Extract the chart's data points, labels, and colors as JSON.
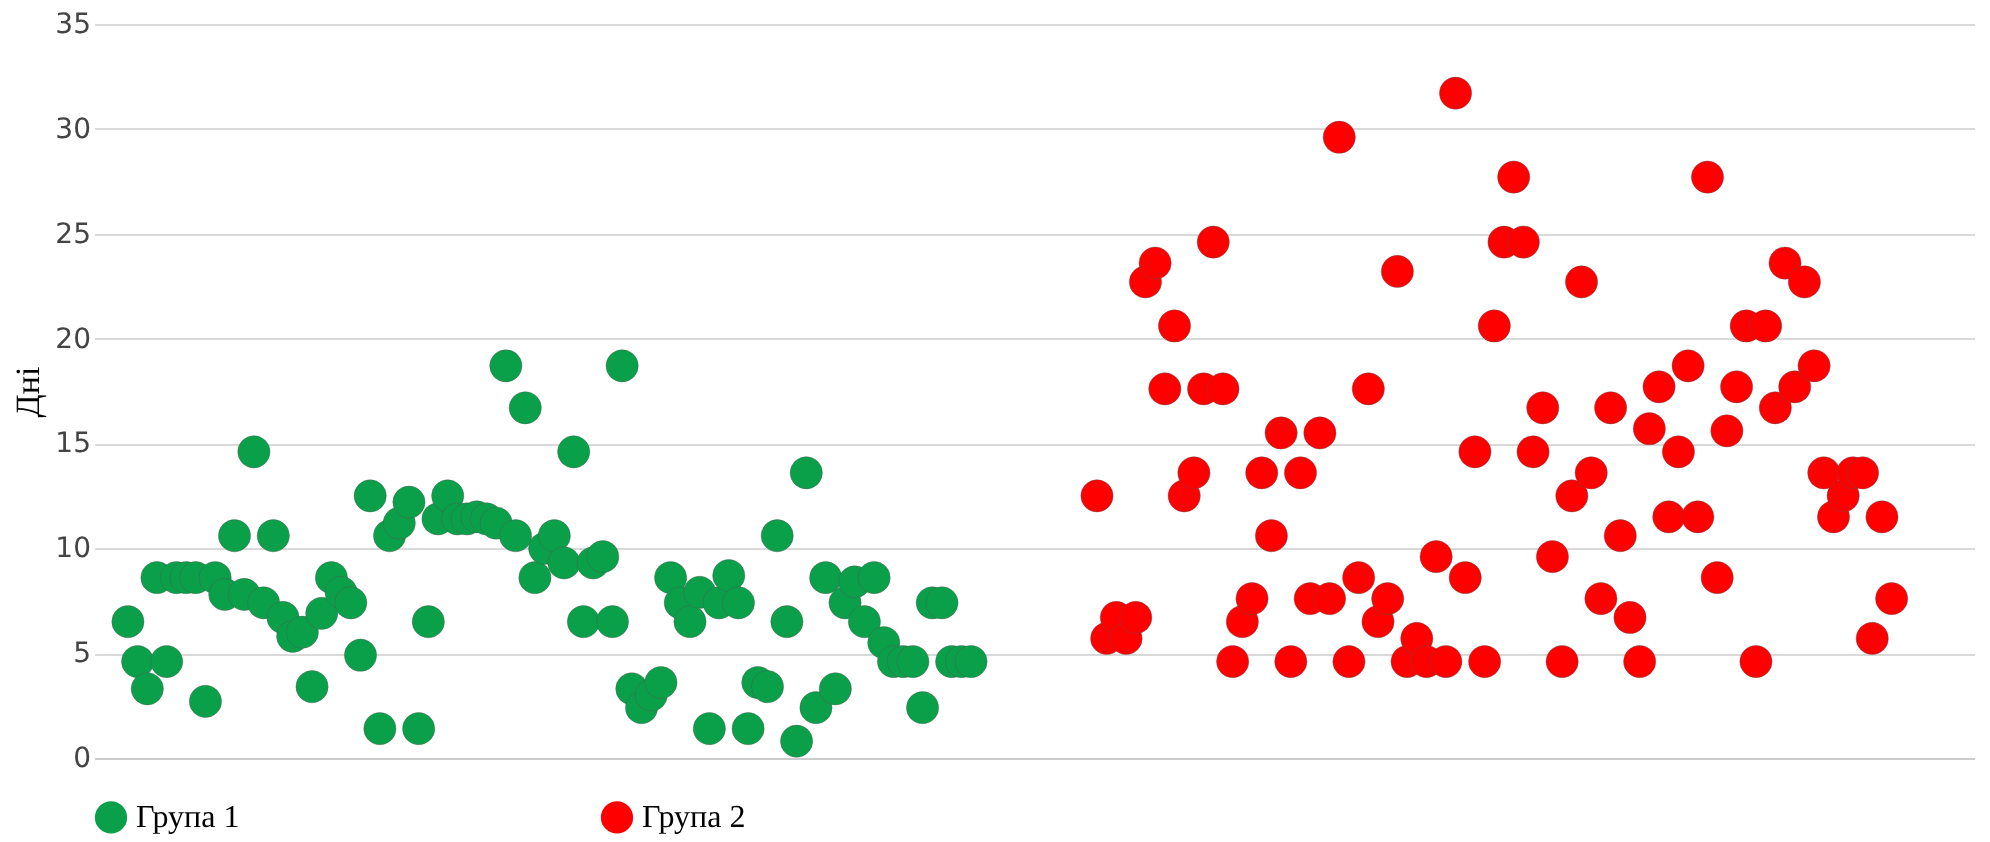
{
  "chart_data": {
    "type": "scatter",
    "ylabel": "Дні",
    "categories": [
      null,
      null,
      null,
      null,
      null,
      null,
      null,
      null,
      null,
      null,
      null,
      null,
      null,
      null,
      null,
      null,
      null,
      null,
      null,
      null,
      null,
      null,
      null,
      null,
      null,
      null,
      null,
      null,
      null,
      null,
      null,
      null,
      null,
      null,
      null,
      null,
      null,
      null,
      null,
      null,
      null,
      null,
      null,
      null,
      null,
      null,
      null,
      null,
      null,
      null,
      null,
      null,
      null,
      null,
      null,
      null,
      null,
      null,
      null,
      null,
      null,
      null,
      null,
      null,
      null,
      null,
      null,
      null,
      null,
      null,
      null,
      null,
      null,
      null,
      null,
      null,
      null,
      null,
      null,
      null,
      null,
      null,
      null,
      null,
      null,
      null,
      null,
      null,
      null,
      null,
      null,
      null,
      null,
      null,
      null,
      null,
      null,
      null,
      null,
      null,
      null,
      null,
      null,
      null,
      null,
      null,
      null,
      null,
      null,
      null,
      null,
      null,
      null,
      null,
      null,
      null,
      null,
      null,
      null,
      null,
      null,
      null,
      null,
      null,
      null,
      null,
      null,
      null,
      null,
      null,
      null,
      null,
      null,
      null,
      null,
      null,
      null,
      null,
      null,
      null,
      null,
      null,
      null,
      null,
      null,
      null,
      null,
      null,
      null,
      null,
      null,
      null,
      null,
      null,
      null,
      null,
      null,
      null,
      null,
      null,
      null,
      null,
      null,
      null,
      null,
      null,
      null,
      null,
      null,
      null,
      null,
      null,
      null,
      null,
      null,
      null,
      null,
      null,
      null,
      null,
      null,
      null,
      null,
      null,
      null,
      null,
      null,
      null,
      null,
      null,
      null,
      null,
      null,
      null
    ],
    "ylim": [
      0,
      35
    ],
    "yticks": [
      0,
      5,
      10,
      15,
      20,
      25,
      30,
      35
    ],
    "grid": "y",
    "legend": "bottom",
    "marker": "circle",
    "series": [
      {
        "name": "Група 1",
        "color": "#0aa04a",
        "values": [
          null,
          null,
          null,
          6.5,
          4.6,
          3.3,
          8.6,
          4.6,
          8.6,
          8.6,
          8.6,
          2.7,
          8.6,
          7.8,
          10.6,
          7.8,
          14.6,
          7.4,
          10.6,
          6.7,
          5.8,
          6.0,
          3.4,
          6.9,
          8.6,
          7.9,
          7.4,
          4.9,
          12.5,
          1.4,
          10.6,
          11.2,
          12.2,
          1.4,
          6.5,
          11.4,
          12.5,
          11.4,
          11.4,
          11.5,
          11.4,
          11.2,
          18.7,
          10.6,
          16.7,
          8.6,
          10.0,
          10.6,
          9.3,
          14.6,
          6.5,
          9.3,
          9.6,
          6.5,
          18.7,
          3.3,
          2.4,
          3.0,
          3.6,
          8.6,
          7.4,
          6.5,
          7.9,
          1.4,
          7.4,
          8.7,
          7.4,
          1.4,
          3.6,
          3.4,
          10.6,
          6.5,
          0.8,
          13.6,
          2.4,
          8.6,
          3.3,
          7.4,
          8.4,
          6.5,
          8.6,
          5.5,
          4.6,
          4.6,
          4.6,
          2.4,
          7.4,
          7.4,
          4.6,
          4.6,
          4.6,
          null,
          null,
          null,
          null,
          null,
          null,
          null,
          null,
          null,
          null,
          null,
          null,
          null,
          null,
          null,
          null,
          null,
          null,
          null,
          null,
          null,
          null,
          null,
          null,
          null,
          null,
          null,
          null,
          null,
          null,
          null,
          null,
          null,
          null,
          null,
          null,
          null,
          null,
          null,
          null,
          null,
          null,
          null,
          null,
          null,
          null,
          null,
          null,
          null,
          null,
          null,
          null,
          null,
          null,
          null,
          null,
          null,
          null,
          null,
          null,
          null,
          null,
          null,
          null,
          null,
          null,
          null,
          null,
          null,
          null,
          null,
          null,
          null,
          null,
          null,
          null,
          null,
          null,
          null,
          null,
          null,
          null,
          null,
          null,
          null,
          null,
          null,
          null,
          null,
          null,
          null,
          null,
          null,
          null,
          null,
          null,
          null,
          null,
          null,
          null,
          null,
          null,
          null
        ]
      },
      {
        "name": "Група 2",
        "color": "#ff0000",
        "values": [
          null,
          null,
          null,
          null,
          null,
          null,
          null,
          null,
          null,
          null,
          null,
          null,
          null,
          null,
          null,
          null,
          null,
          null,
          null,
          null,
          null,
          null,
          null,
          null,
          null,
          null,
          null,
          null,
          null,
          null,
          null,
          null,
          null,
          null,
          null,
          null,
          null,
          null,
          null,
          null,
          null,
          null,
          null,
          null,
          null,
          null,
          null,
          null,
          null,
          null,
          null,
          null,
          null,
          null,
          null,
          null,
          null,
          null,
          null,
          null,
          null,
          null,
          null,
          null,
          null,
          null,
          null,
          null,
          null,
          null,
          null,
          null,
          null,
          null,
          null,
          null,
          null,
          null,
          null,
          null,
          null,
          null,
          null,
          null,
          null,
          null,
          null,
          null,
          null,
          null,
          null,
          null,
          null,
          null,
          null,
          null,
          null,
          null,
          null,
          null,
          null,
          null,
          null,
          12.5,
          5.7,
          6.7,
          5.7,
          6.7,
          22.7,
          23.6,
          17.6,
          20.6,
          12.5,
          13.6,
          17.6,
          24.6,
          17.6,
          4.6,
          6.5,
          7.6,
          13.6,
          10.6,
          15.5,
          4.6,
          13.6,
          7.6,
          15.5,
          7.6,
          29.6,
          4.6,
          8.6,
          17.6,
          6.5,
          7.6,
          23.2,
          4.6,
          5.7,
          4.6,
          9.6,
          4.6,
          31.7,
          8.6,
          14.6,
          4.6,
          20.6,
          24.6,
          27.7,
          24.6,
          14.6,
          16.7,
          9.6,
          4.6,
          12.5,
          22.7,
          13.6,
          7.6,
          16.7,
          10.6,
          6.7,
          4.6,
          15.7,
          17.7,
          11.5,
          14.6,
          18.7,
          11.5,
          27.7,
          8.6,
          15.6,
          17.7,
          20.6,
          4.6,
          20.6,
          16.7,
          23.6,
          17.7,
          22.7,
          18.7,
          13.6,
          11.5,
          12.5,
          13.6,
          13.6,
          5.7,
          11.5,
          7.6,
          null,
          null,
          null,
          null,
          null,
          null,
          null,
          null
        ]
      }
    ]
  }
}
